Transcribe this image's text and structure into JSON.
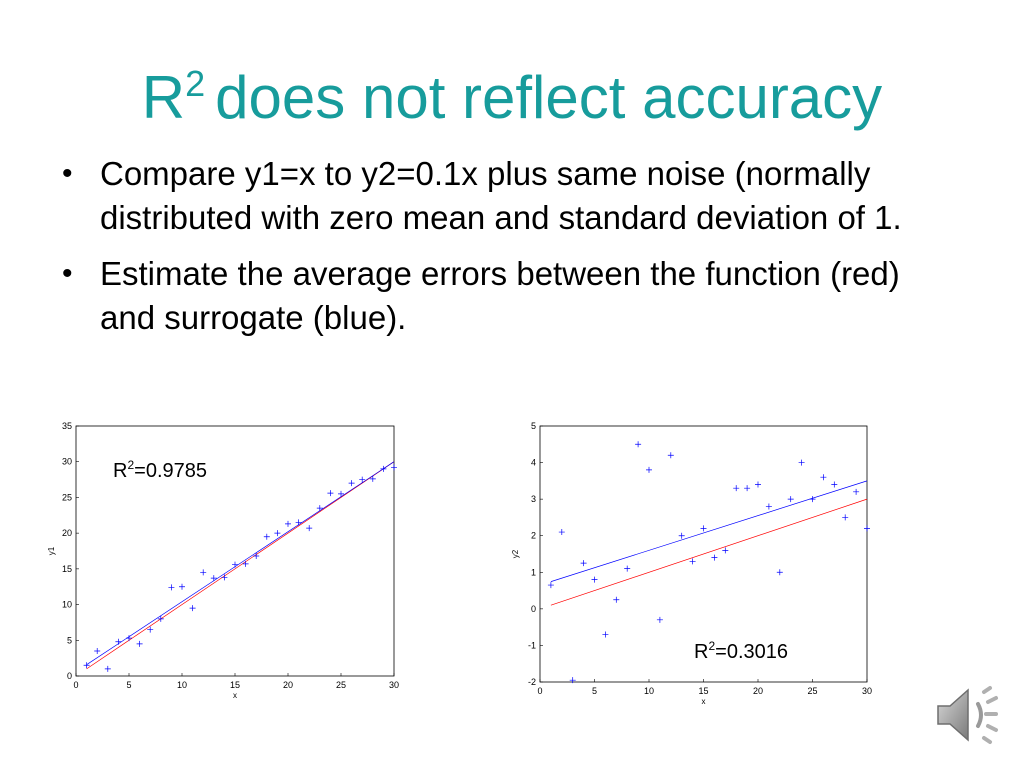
{
  "slide": {
    "title_base": "R",
    "title_sup": "2",
    "title_rest": "does not reflect accuracy",
    "bullets": [
      "Compare y1=x to y2=0.1x plus same noise (normally distributed with zero mean and standard deviation of 1.",
      "Estimate the average errors between the function (red) and surrogate (blue)."
    ]
  },
  "annotations": {
    "left": {
      "base": "R",
      "sup": "2",
      "text": "=0.9785"
    },
    "right": {
      "base": "R",
      "sup": "2",
      "text": "=0.3016"
    }
  },
  "colors": {
    "title": "#179c9c",
    "function": "#ff0000",
    "surrogate": "#0000ff",
    "points": "#0000ff"
  },
  "icons": {
    "speaker": "speaker-audio-icon"
  },
  "chart_data": [
    {
      "type": "scatter",
      "title": "",
      "xlabel": "x",
      "ylabel": "y1",
      "xlim": [
        0,
        30
      ],
      "ylim": [
        0,
        35
      ],
      "xticks": [
        0,
        5,
        10,
        15,
        20,
        25,
        30
      ],
      "yticks": [
        0,
        5,
        10,
        15,
        20,
        25,
        30,
        35
      ],
      "annotation": "R2=0.9785",
      "x": [
        1,
        2,
        3,
        4,
        5,
        6,
        7,
        8,
        9,
        10,
        11,
        12,
        13,
        14,
        15,
        16,
        17,
        18,
        19,
        20,
        21,
        22,
        23,
        24,
        25,
        26,
        27,
        28,
        29,
        30
      ],
      "y": [
        1.5,
        3.5,
        1.0,
        4.8,
        5.3,
        4.5,
        6.5,
        8.0,
        12.4,
        12.5,
        9.5,
        14.5,
        13.7,
        13.8,
        15.6,
        15.7,
        16.8,
        19.5,
        20.0,
        21.3,
        21.5,
        20.7,
        23.5,
        25.6,
        25.5,
        27.0,
        27.5,
        27.6,
        29.0,
        29.2
      ],
      "series": [
        {
          "name": "function (red)",
          "slope": 1.0,
          "intercept": 0.0
        },
        {
          "name": "surrogate (blue)",
          "slope": 0.98,
          "intercept": 0.6
        }
      ]
    },
    {
      "type": "scatter",
      "title": "",
      "xlabel": "x",
      "ylabel": "y2",
      "xlim": [
        0,
        30
      ],
      "ylim": [
        -2,
        5
      ],
      "xticks": [
        0,
        5,
        10,
        15,
        20,
        25,
        30
      ],
      "yticks": [
        -2,
        -1,
        0,
        1,
        2,
        3,
        4,
        5
      ],
      "annotation": "R2=0.3016",
      "x": [
        1,
        2,
        3,
        4,
        5,
        6,
        7,
        8,
        9,
        10,
        11,
        12,
        13,
        14,
        15,
        16,
        17,
        18,
        19,
        20,
        21,
        22,
        23,
        24,
        25,
        26,
        27,
        28,
        29,
        30
      ],
      "y": [
        0.65,
        2.1,
        -1.95,
        1.25,
        0.8,
        -0.7,
        0.25,
        1.1,
        4.5,
        3.8,
        -0.3,
        4.2,
        2.0,
        1.3,
        2.2,
        1.4,
        1.6,
        3.3,
        3.3,
        3.4,
        2.8,
        1.0,
        3.0,
        4.0,
        3.0,
        3.6,
        3.4,
        2.5,
        3.2,
        2.2
      ],
      "series": [
        {
          "name": "function (red)",
          "slope": 0.1,
          "intercept": 0.0
        },
        {
          "name": "surrogate (blue)",
          "slope": 0.095,
          "intercept": 0.65
        }
      ]
    }
  ]
}
